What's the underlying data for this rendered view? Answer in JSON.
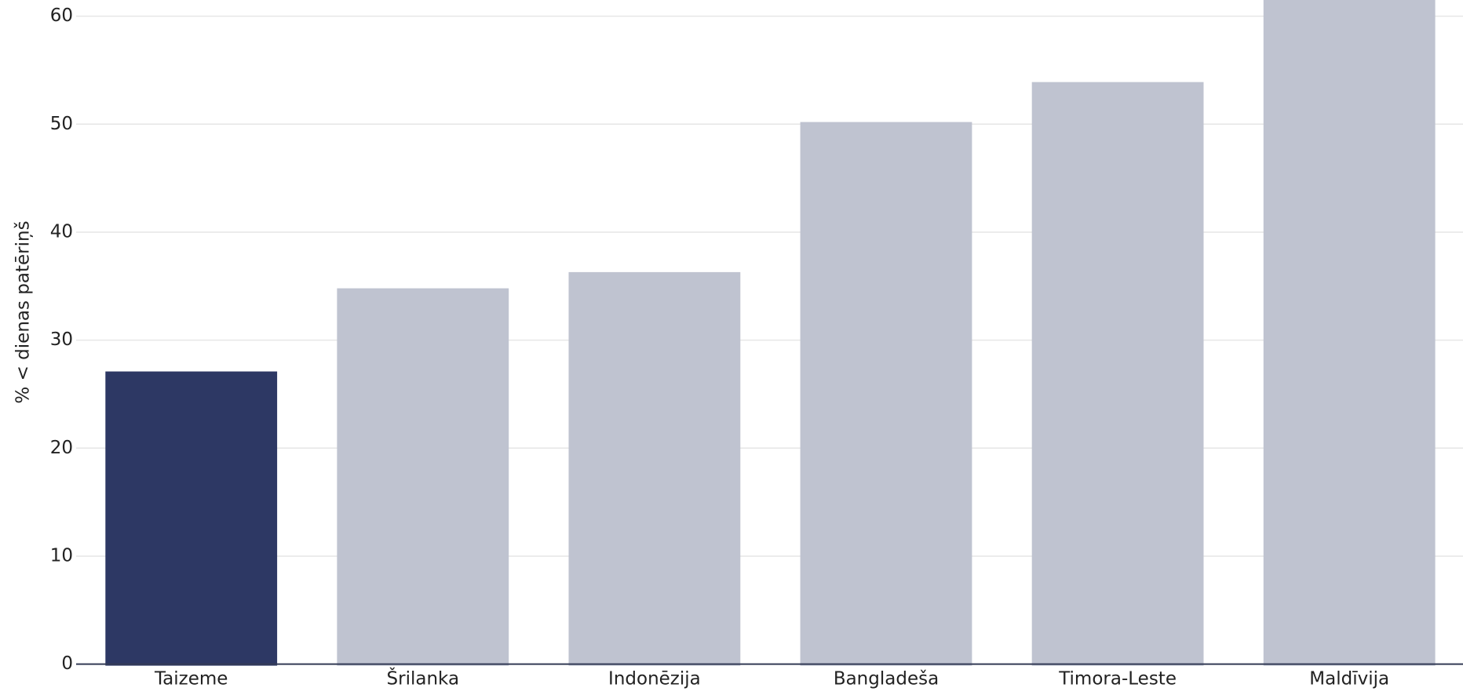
{
  "chart_data": {
    "type": "bar",
    "y_label": "% < dienas patēriņš",
    "categories": [
      "Taizeme",
      "Šrilanka",
      "Indonēzija",
      "Bangladeša",
      "Timora-Leste",
      "Maldīvija"
    ],
    "values": [
      27.1,
      34.8,
      36.3,
      50.2,
      53.9,
      62
    ],
    "colors": [
      "#2d3864",
      "#bfc3d0",
      "#bfc3d0",
      "#bfc3d0",
      "#bfc3d0",
      "#bfc3d0"
    ],
    "ylim": [
      0,
      61.5
    ],
    "yticks": [
      0,
      10,
      20,
      30,
      40,
      50,
      60
    ],
    "grid": true
  }
}
